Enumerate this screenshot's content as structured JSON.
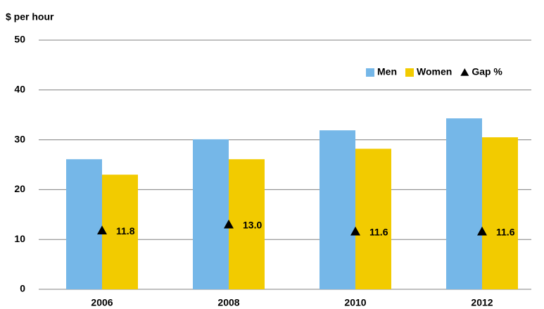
{
  "chart_data": {
    "type": "bar",
    "title": "$ per hour",
    "categories": [
      "2006",
      "2008",
      "2010",
      "2012"
    ],
    "series": [
      {
        "name": "Men",
        "color": "#75b7e8",
        "values": [
          26.1,
          30.1,
          31.9,
          34.3
        ]
      },
      {
        "name": "Women",
        "color": "#f2cb00",
        "values": [
          23.0,
          26.1,
          28.2,
          30.5
        ]
      },
      {
        "name": "Gap %",
        "type": "marker",
        "color": "#000000",
        "values": [
          11.8,
          13.0,
          11.6,
          11.6
        ],
        "value_labels": [
          "11.8",
          "13.0",
          "11.6",
          "11.6"
        ]
      }
    ],
    "ylim": [
      0,
      50
    ],
    "yticks": [
      0,
      10,
      20,
      30,
      40,
      50
    ],
    "grid": true,
    "legend": "top-right"
  }
}
